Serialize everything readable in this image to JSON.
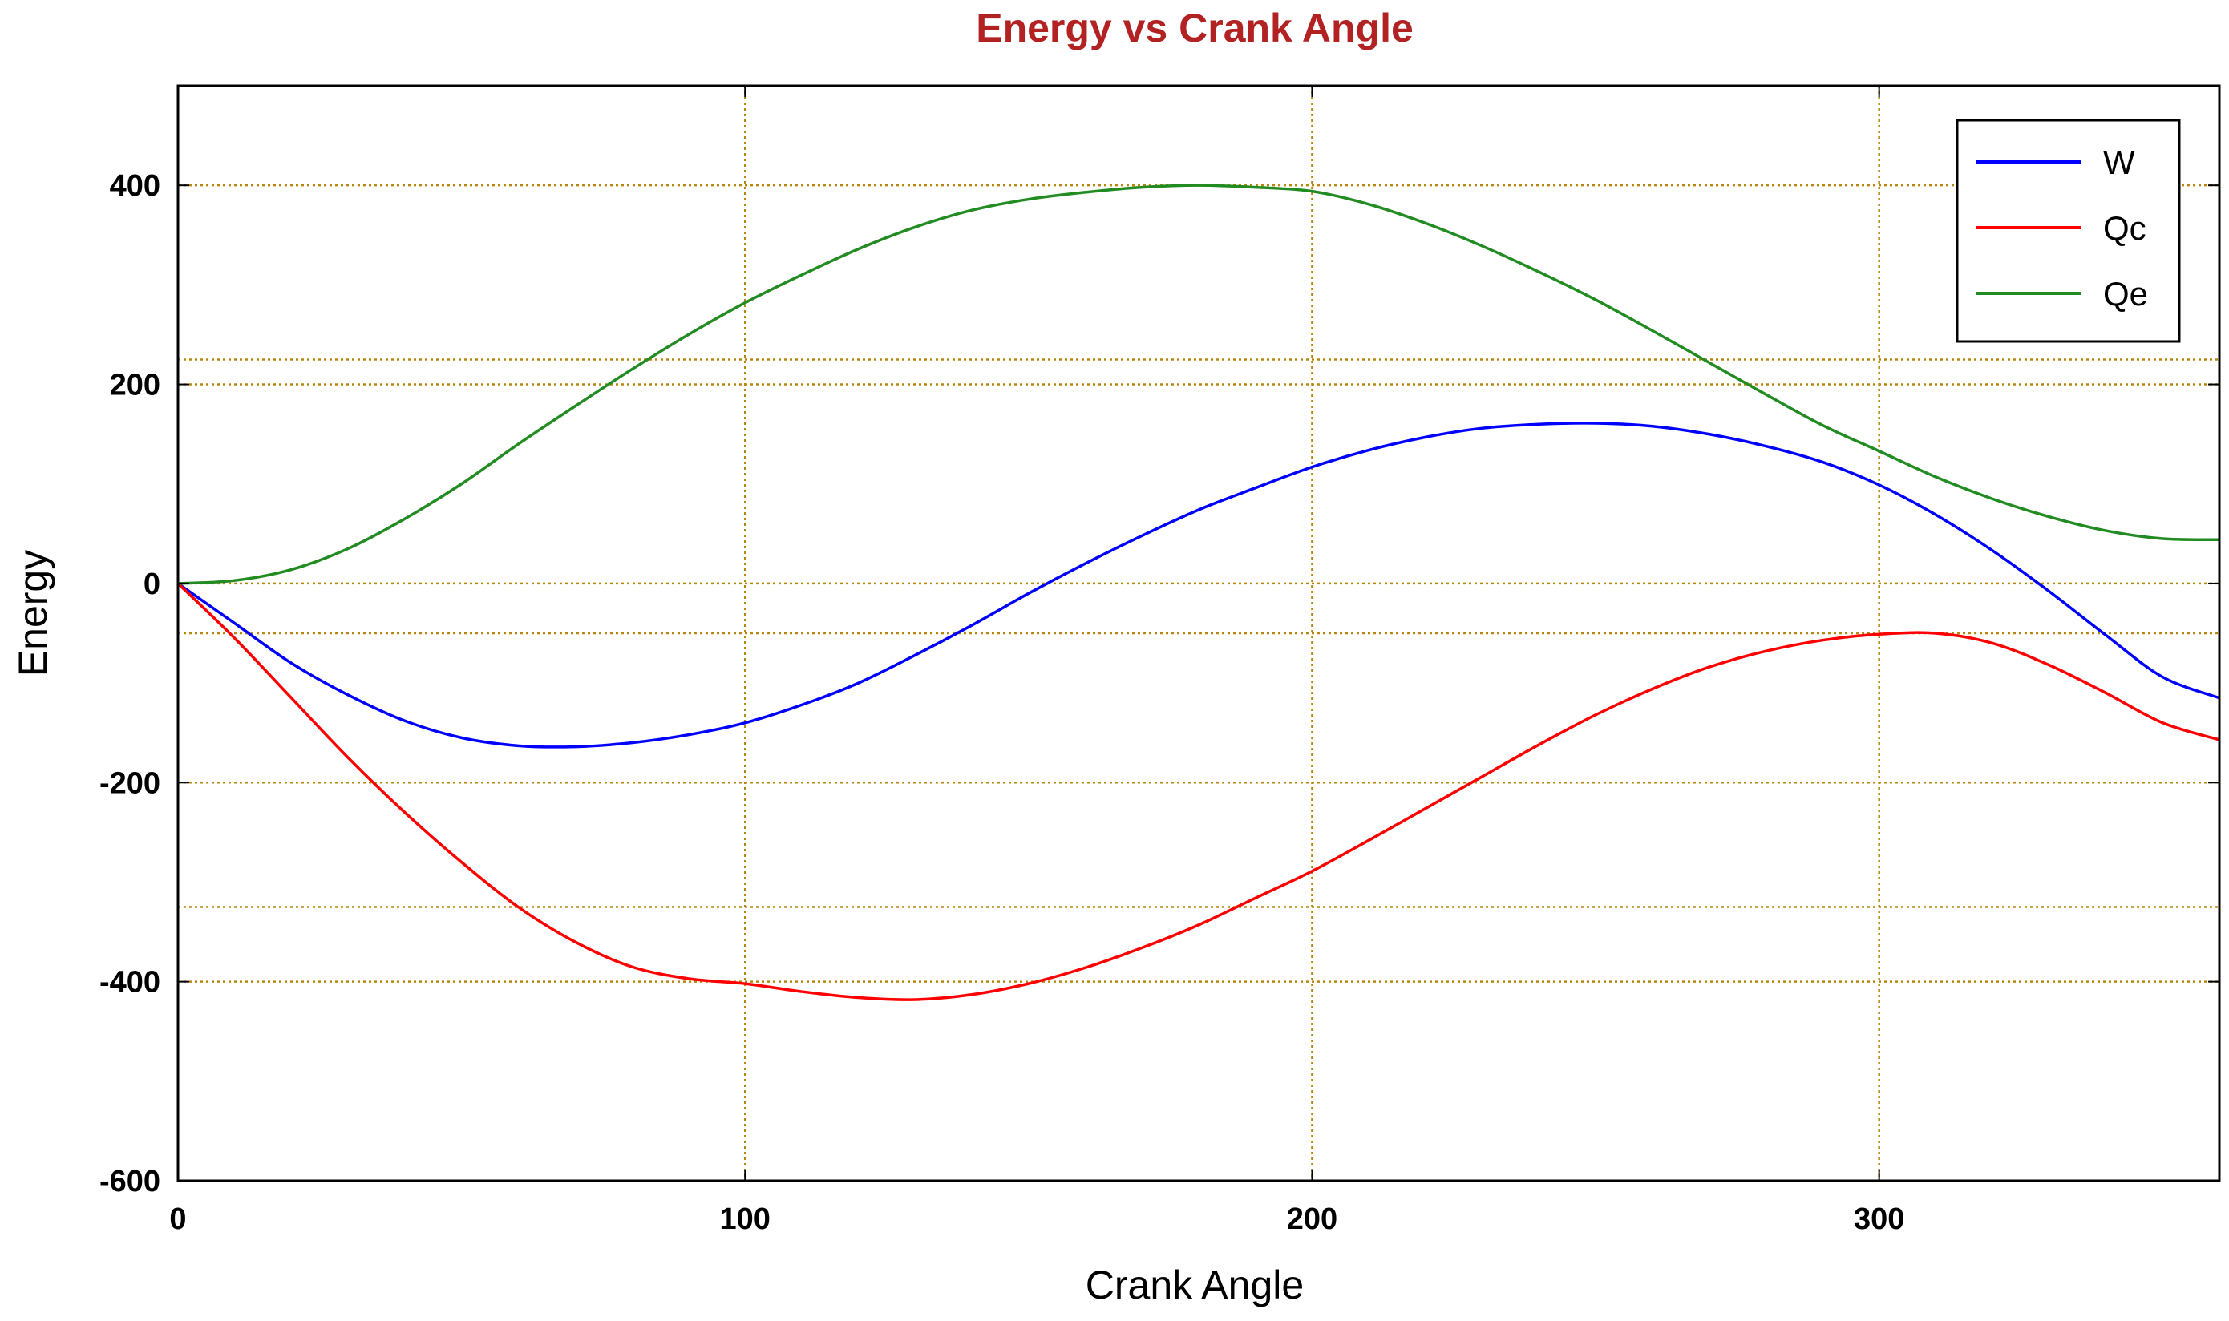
{
  "chart_data": {
    "type": "line",
    "title": "Energy vs Crank Angle",
    "xlabel": "Crank Angle",
    "ylabel": "Energy",
    "xlim": [
      0,
      360
    ],
    "ylim": [
      -600,
      500
    ],
    "xticks": [
      0,
      100,
      200,
      300
    ],
    "yticks": [
      -600,
      -400,
      -200,
      0,
      200,
      400
    ],
    "extra_gridlines_y": [
      225,
      -50,
      -325
    ],
    "grid": true,
    "grid_color": "#b8860b",
    "title_color": "#b22222",
    "legend_position": "top-right",
    "x": [
      0,
      10,
      20,
      30,
      40,
      50,
      60,
      70,
      80,
      90,
      100,
      110,
      120,
      130,
      140,
      150,
      160,
      170,
      180,
      190,
      200,
      210,
      220,
      230,
      240,
      250,
      260,
      270,
      280,
      290,
      300,
      310,
      320,
      330,
      340,
      350,
      360
    ],
    "series": [
      {
        "name": "W",
        "color": "#0000ff",
        "values": [
          0,
          -40,
          -80,
          -112,
          -138,
          -155,
          -163,
          -164,
          -160,
          -152,
          -140,
          -122,
          -100,
          -72,
          -42,
          -10,
          20,
          48,
          74,
          96,
          117,
          134,
          147,
          156,
          160,
          161,
          158,
          150,
          138,
          122,
          99,
          69,
          33,
          -8,
          -52,
          -94,
          -115
        ]
      },
      {
        "name": "Qc",
        "color": "#ff0000",
        "values": [
          0,
          -55,
          -115,
          -175,
          -230,
          -280,
          -325,
          -360,
          -385,
          -397,
          -402,
          -410,
          -416,
          -418,
          -413,
          -402,
          -386,
          -366,
          -343,
          -316,
          -289,
          -258,
          -226,
          -194,
          -162,
          -132,
          -106,
          -84,
          -68,
          -57,
          -51,
          -50,
          -60,
          -82,
          -110,
          -140,
          -157
        ]
      },
      {
        "name": "Qe",
        "color": "#228b22",
        "values": [
          0,
          3,
          14,
          35,
          65,
          100,
          140,
          178,
          215,
          250,
          282,
          310,
          336,
          358,
          375,
          386,
          393,
          398,
          400,
          398,
          394,
          381,
          362,
          339,
          313,
          285,
          254,
          222,
          190,
          159,
          133,
          107,
          85,
          67,
          53,
          45,
          44
        ]
      }
    ]
  }
}
